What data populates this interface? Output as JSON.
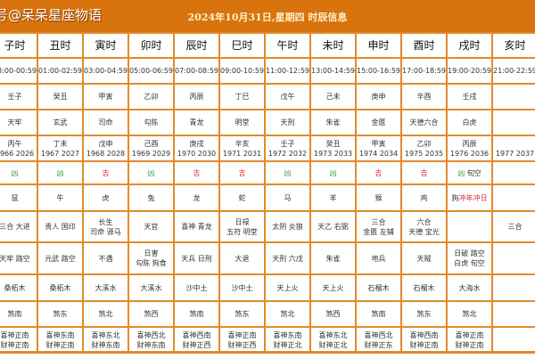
{
  "header": {
    "watermark": "号@呆呆星座物语",
    "title": "2024年10月31日,星期四 时辰信息"
  },
  "colors": {
    "header_bg": "#d9730d",
    "border": "#e38a2a",
    "lucky": "#dd2222",
    "unlucky": "#3a9a3a"
  },
  "columns": [
    {
      "name": "子时",
      "time": "23:00-00:59",
      "ganzhi": "壬子",
      "star": "天牢",
      "year_gz": "丙午",
      "years": "1966 2026",
      "luck": "凶",
      "luck_type": "bad",
      "luck_extra": "",
      "zodiac": "鼠",
      "clash": "",
      "good": [
        "三合 大进"
      ],
      "bad": [
        "天牢 路空"
      ],
      "nayin": "桑柘木",
      "sha": "煞南",
      "dir": [
        "喜神正南",
        "财神正南"
      ]
    },
    {
      "name": "丑时",
      "time": "01:00-02:59",
      "ganzhi": "癸丑",
      "star": "玄武",
      "year_gz": "丁未",
      "years": "1967 2027",
      "luck": "凶",
      "luck_type": "bad",
      "luck_extra": "",
      "zodiac": "牛",
      "clash": "",
      "good": [
        "贵人 国印"
      ],
      "bad": [
        "元武 路空"
      ],
      "nayin": "桑柘木",
      "sha": "煞东",
      "dir": [
        "喜神东南",
        "财神正南"
      ]
    },
    {
      "name": "寅时",
      "time": "03:00-04:59",
      "ganzhi": "甲寅",
      "star": "司命",
      "year_gz": "戊申",
      "years": "1968 2028",
      "luck": "吉",
      "luck_type": "good",
      "luck_extra": "",
      "zodiac": "虎",
      "clash": "",
      "good": [
        "长生",
        "司命 驿马"
      ],
      "bad": [
        "不遇"
      ],
      "nayin": "大溪水",
      "sha": "煞北",
      "dir": [
        "喜神东北",
        "财神东南"
      ]
    },
    {
      "name": "卯时",
      "time": "05:00-06:59",
      "ganzhi": "乙卯",
      "star": "勾陈",
      "year_gz": "己酉",
      "years": "1969 2029",
      "luck": "凶",
      "luck_type": "bad",
      "luck_extra": "",
      "zodiac": "兔",
      "clash": "",
      "good": [
        "天官"
      ],
      "bad": [
        "日害",
        "勾陈 狗食"
      ],
      "nayin": "大溪水",
      "sha": "煞西",
      "dir": [
        "喜神西北",
        "财神东南"
      ]
    },
    {
      "name": "辰时",
      "time": "07:00-08:59",
      "ganzhi": "丙辰",
      "star": "青龙",
      "year_gz": "庚戌",
      "years": "1970 2030",
      "luck": "吉",
      "luck_type": "good",
      "luck_extra": "",
      "zodiac": "龙",
      "clash": "",
      "good": [
        "喜神 青龙"
      ],
      "bad": [
        "天兵 日刑"
      ],
      "nayin": "沙中土",
      "sha": "煞南",
      "dir": [
        "喜神西南",
        "财神正西"
      ]
    },
    {
      "name": "巳时",
      "time": "09:00-10:59",
      "ganzhi": "丁巳",
      "star": "明堂",
      "year_gz": "辛亥",
      "years": "1971 2031",
      "luck": "吉",
      "luck_type": "good",
      "luck_extra": "",
      "zodiac": "蛇",
      "clash": "",
      "good": [
        "日禄",
        "五符 明堂"
      ],
      "bad": [
        "大退"
      ],
      "nayin": "沙中土",
      "sha": "煞东",
      "dir": [
        "喜神正南",
        "财神正西"
      ]
    },
    {
      "name": "午时",
      "time": "11:00-12:59",
      "ganzhi": "戊午",
      "star": "天刑",
      "year_gz": "壬子",
      "years": "1972 2032",
      "luck": "凶",
      "luck_type": "bad",
      "luck_extra": "",
      "zodiac": "马",
      "clash": "",
      "good": [
        "太阴 炎狼"
      ],
      "bad": [
        "天刑 六戊"
      ],
      "nayin": "天上火",
      "sha": "煞北",
      "dir": [
        "喜神东南",
        "财神正北"
      ]
    },
    {
      "name": "未时",
      "time": "13:00-14:59",
      "ganzhi": "己未",
      "star": "朱雀",
      "year_gz": "癸丑",
      "years": "1973 2033",
      "luck": "凶",
      "luck_type": "bad",
      "luck_extra": "",
      "zodiac": "羊",
      "clash": "",
      "good": [
        "天乙 右弼"
      ],
      "bad": [
        "朱雀"
      ],
      "nayin": "天上火",
      "sha": "煞西",
      "dir": [
        "喜神东北",
        "财神正北"
      ]
    },
    {
      "name": "申时",
      "time": "15:00-16:59",
      "ganzhi": "庚申",
      "star": "金匮",
      "year_gz": "甲寅",
      "years": "1974 2034",
      "luck": "吉",
      "luck_type": "good",
      "luck_extra": "",
      "zodiac": "猴",
      "clash": "",
      "good": [
        "三合",
        "金匮 左辅"
      ],
      "bad": [
        "地兵"
      ],
      "nayin": "石榴木",
      "sha": "煞南",
      "dir": [
        "喜神西北",
        "财神正东"
      ]
    },
    {
      "name": "酉时",
      "time": "17:00-18:59",
      "ganzhi": "辛酉",
      "star": "天德六合",
      "year_gz": "乙卯",
      "years": "1975 2035",
      "luck": "吉",
      "luck_type": "good",
      "luck_extra": "",
      "zodiac": "鸡",
      "clash": "",
      "good": [
        "六合",
        "天德 宝光"
      ],
      "bad": [
        "天贼"
      ],
      "nayin": "石榴木",
      "sha": "煞东",
      "dir": [
        "喜神西南",
        "财神正南"
      ]
    },
    {
      "name": "戌时",
      "time": "19:00-20:59",
      "ganzhi": "壬戌",
      "star": "白虎",
      "year_gz": "丙辰",
      "years": "1976 2036",
      "luck": "凶",
      "luck_type": "bad",
      "luck_extra": "旬空",
      "zodiac": "狗",
      "clash": "冲年冲日",
      "good": [
        ""
      ],
      "bad": [
        "日破 路空",
        "白虎 旬空"
      ],
      "nayin": "大海水",
      "sha": "煞北",
      "dir": [
        "喜神正南",
        "财神正南"
      ]
    },
    {
      "name": "亥时",
      "time": "21:00-22:59",
      "ganzhi": "",
      "star": "",
      "year_gz": "",
      "years": "1977 2037",
      "luck": "",
      "luck_type": "",
      "luck_extra": "",
      "zodiac": "",
      "clash": "",
      "good": [
        "三合"
      ],
      "bad": [
        ""
      ],
      "nayin": "",
      "sha": "",
      "dir": [
        "",
        ""
      ]
    }
  ]
}
